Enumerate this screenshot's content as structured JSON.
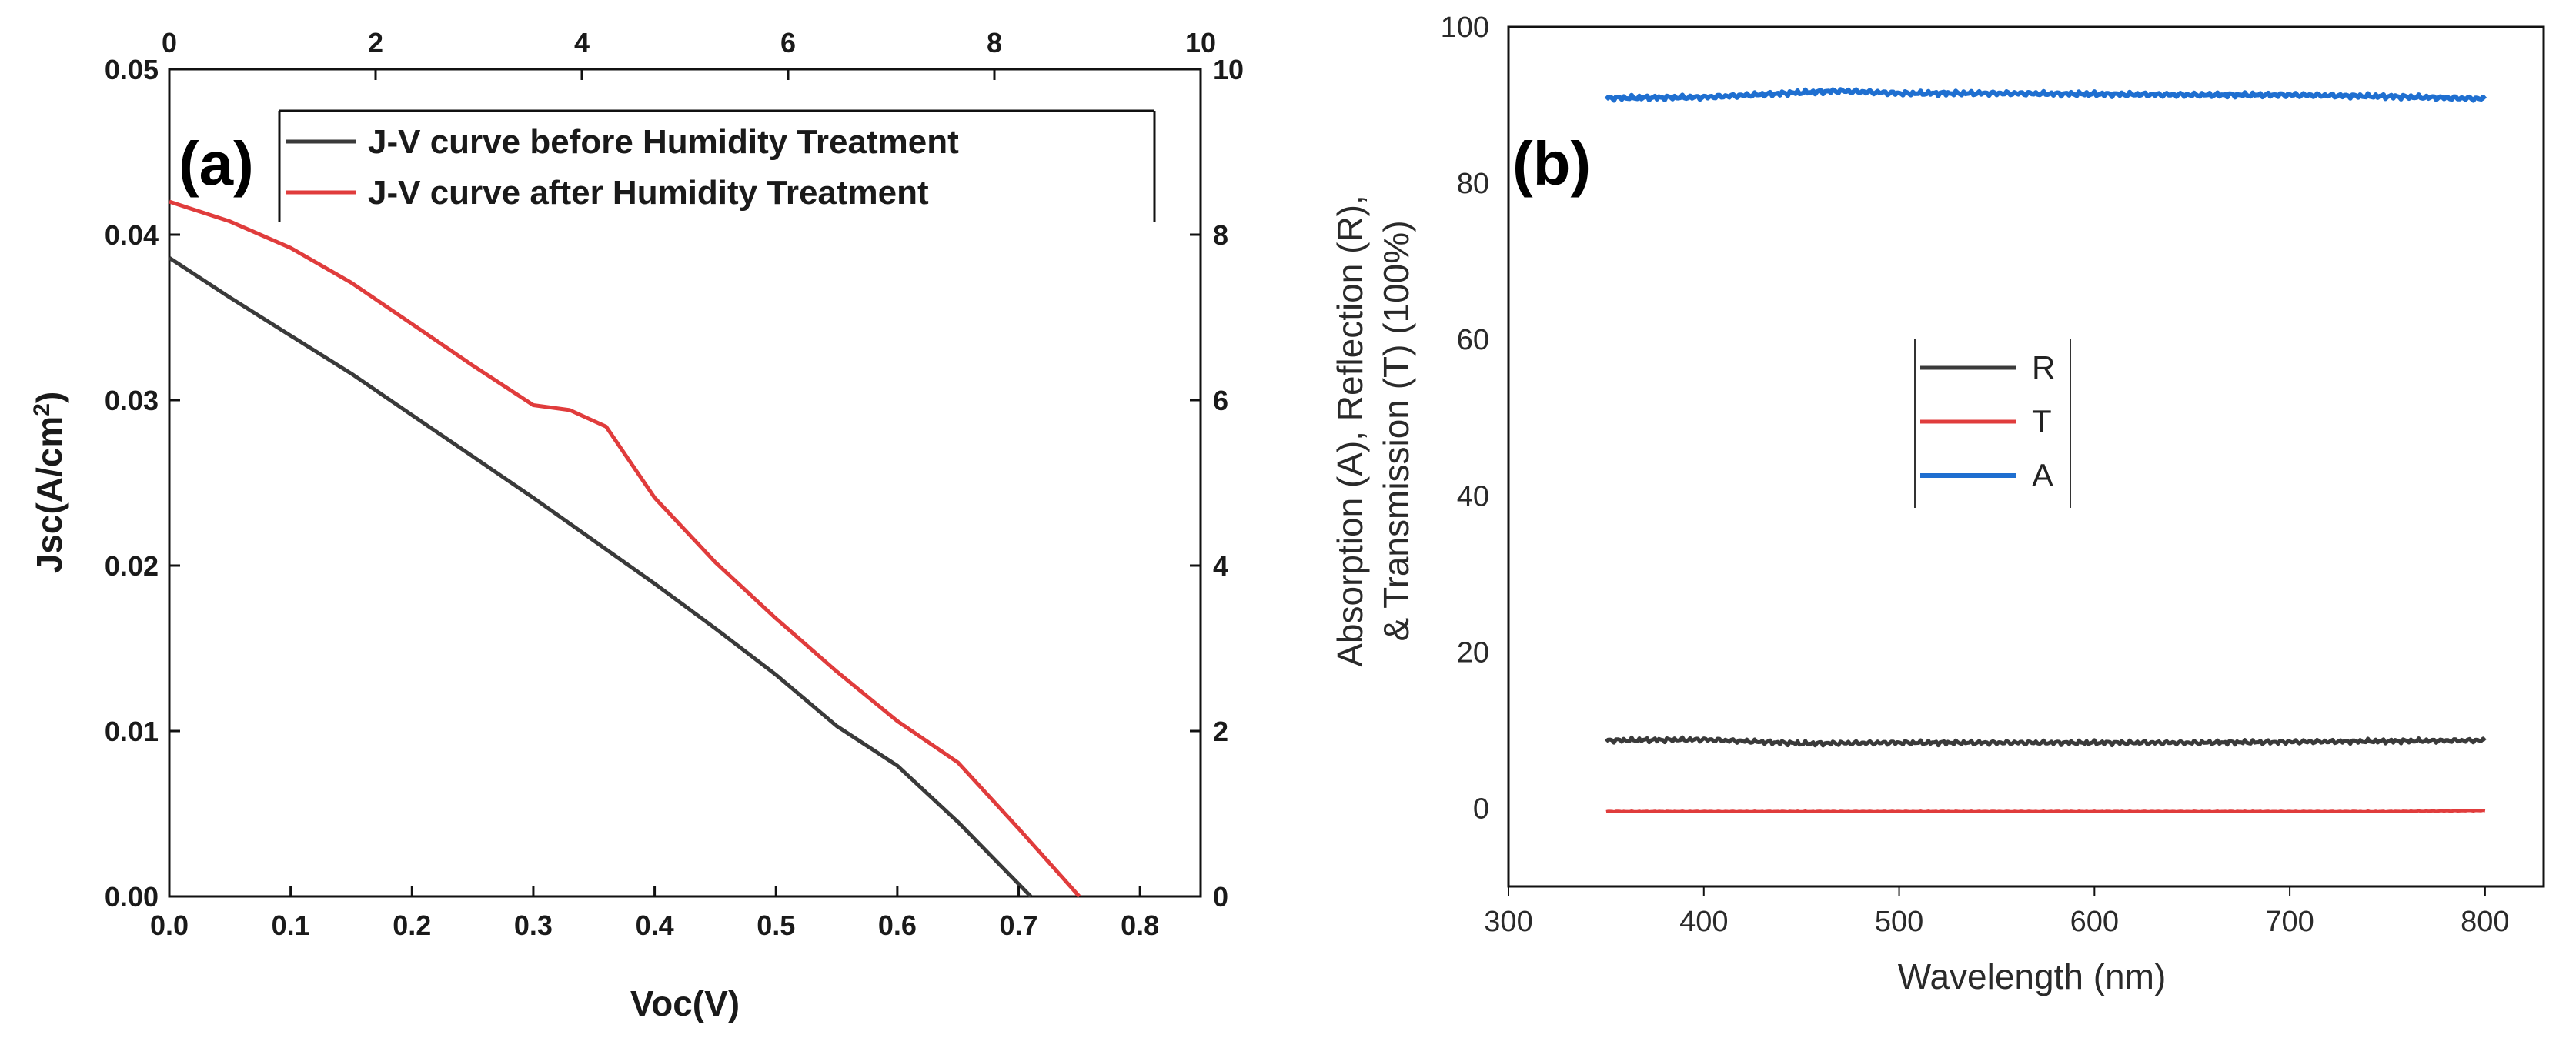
{
  "chart_data": [
    {
      "panel_label": "(a)",
      "type": "line",
      "xlabel": "Voc(V)",
      "ylabel_main": "Jsc(A/cm",
      "ylabel_sup": "2",
      "ylabel_close": ")",
      "xlim": [
        0,
        0.85
      ],
      "ylim": [
        0,
        0.05
      ],
      "top_xlim": [
        0,
        10
      ],
      "right_ylim": [
        0,
        10
      ],
      "x_ticks": [
        "0.0",
        "0.1",
        "0.2",
        "0.3",
        "0.4",
        "0.5",
        "0.6",
        "0.7",
        "0.8"
      ],
      "x_tick_values": [
        0,
        0.1,
        0.2,
        0.3,
        0.4,
        0.5,
        0.6,
        0.7,
        0.8
      ],
      "y_ticks": [
        "0.00",
        "0.01",
        "0.02",
        "0.03",
        "0.04",
        "0.05"
      ],
      "y_tick_values": [
        0,
        0.01,
        0.02,
        0.03,
        0.04,
        0.05
      ],
      "top_ticks": [
        "0",
        "2",
        "4",
        "6",
        "8",
        "10"
      ],
      "top_tick_values": [
        0,
        2,
        4,
        6,
        8,
        10
      ],
      "right_ticks": [
        "0",
        "2",
        "4",
        "6",
        "8",
        "10"
      ],
      "right_tick_values": [
        0,
        2,
        4,
        6,
        8,
        10
      ],
      "legend_position": "top-right",
      "series": [
        {
          "name": "J-V curve before Humidity Treatment",
          "color": "#3a3a3a",
          "x": [
            0,
            0.05,
            0.1,
            0.15,
            0.2,
            0.25,
            0.3,
            0.35,
            0.4,
            0.45,
            0.5,
            0.55,
            0.6,
            0.65,
            0.71
          ],
          "y": [
            0.0386,
            0.0362,
            0.0339,
            0.0316,
            0.0291,
            0.0266,
            0.0241,
            0.0215,
            0.0189,
            0.0162,
            0.0134,
            0.0103,
            0.0079,
            0.0045,
            0
          ]
        },
        {
          "name": "J-V curve after Humidity Treatment",
          "color": "#e03c3c",
          "x": [
            0,
            0.05,
            0.1,
            0.15,
            0.2,
            0.25,
            0.3,
            0.33,
            0.36,
            0.4,
            0.45,
            0.5,
            0.55,
            0.6,
            0.65,
            0.7,
            0.75
          ],
          "y": [
            0.042,
            0.0408,
            0.0392,
            0.0371,
            0.0346,
            0.0321,
            0.0297,
            0.0294,
            0.0284,
            0.0241,
            0.0202,
            0.0168,
            0.0136,
            0.0106,
            0.0081,
            0.0041,
            0
          ]
        }
      ]
    },
    {
      "panel_label": "(b)",
      "type": "line",
      "xlabel": "Wavelength (nm)",
      "ylabel_line1": "Absorption (A), Reflection (R),",
      "ylabel_line2": "& Transmission (T) (100%)",
      "xlim": [
        300,
        830
      ],
      "ylim": [
        -10,
        100
      ],
      "x_ticks": [
        "300",
        "400",
        "500",
        "600",
        "700",
        "800"
      ],
      "x_tick_values": [
        300,
        400,
        500,
        600,
        700,
        800
      ],
      "y_ticks": [
        "0",
        "20",
        "40",
        "60",
        "80",
        "100"
      ],
      "y_tick_values": [
        0,
        20,
        40,
        60,
        80,
        100
      ],
      "legend_position": "center",
      "series": [
        {
          "name": "R",
          "color": "#3a3a3a",
          "x": [
            350,
            400,
            450,
            500,
            550,
            600,
            650,
            700,
            750,
            800
          ],
          "y": [
            8.7,
            8.8,
            8.3,
            8.4,
            8.4,
            8.4,
            8.4,
            8.5,
            8.6,
            8.7
          ]
        },
        {
          "name": "T",
          "color": "#e03c3c",
          "x": [
            350,
            400,
            450,
            500,
            550,
            600,
            650,
            700,
            750,
            800
          ],
          "y": [
            -0.4,
            -0.4,
            -0.4,
            -0.4,
            -0.4,
            -0.4,
            -0.4,
            -0.4,
            -0.4,
            -0.3
          ]
        },
        {
          "name": "A",
          "color": "#1f6fd0",
          "x": [
            350,
            400,
            450,
            470,
            500,
            550,
            600,
            650,
            700,
            750,
            800
          ],
          "y": [
            90.9,
            91.0,
            91.6,
            91.8,
            91.5,
            91.5,
            91.4,
            91.3,
            91.3,
            91.1,
            90.8
          ]
        }
      ]
    }
  ]
}
